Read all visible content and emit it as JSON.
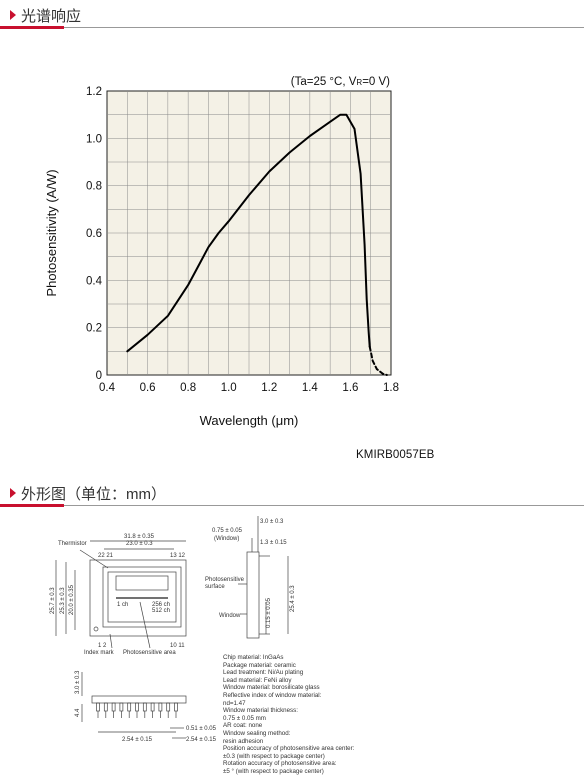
{
  "sections": [
    {
      "title": "光谱响应"
    },
    {
      "title": "外形图（单位：mm）"
    }
  ],
  "chart_data": {
    "type": "line",
    "title": "",
    "condition": {
      "prefix": "(Ta=25 °C, V",
      "sub": "R",
      "suffix": "=0 V)"
    },
    "xlabel": "Wavelength (μm)",
    "ylabel": "Photosensitivity (A/W)",
    "xlim": [
      0.4,
      1.8
    ],
    "ylim": [
      0,
      1.2
    ],
    "xticks": [
      "0.4",
      "0.6",
      "0.8",
      "1.0",
      "1.2",
      "1.4",
      "1.6",
      "1.8"
    ],
    "yticks": [
      "0",
      "0.2",
      "0.4",
      "0.6",
      "0.8",
      "1.0",
      "1.2"
    ],
    "grid": true,
    "series": [
      {
        "style": "solid",
        "points": [
          [
            0.5,
            0.1
          ],
          [
            0.6,
            0.17
          ],
          [
            0.7,
            0.25
          ],
          [
            0.8,
            0.38
          ],
          [
            0.85,
            0.46
          ],
          [
            0.9,
            0.54
          ],
          [
            0.95,
            0.6
          ],
          [
            1.0,
            0.65
          ],
          [
            1.1,
            0.76
          ],
          [
            1.2,
            0.86
          ],
          [
            1.3,
            0.94
          ],
          [
            1.4,
            1.01
          ],
          [
            1.5,
            1.07
          ],
          [
            1.55,
            1.1
          ],
          [
            1.58,
            1.1
          ],
          [
            1.62,
            1.04
          ],
          [
            1.65,
            0.85
          ],
          [
            1.67,
            0.55
          ],
          [
            1.68,
            0.32
          ],
          [
            1.69,
            0.18
          ],
          [
            1.695,
            0.12
          ]
        ]
      },
      {
        "style": "dashed",
        "points": [
          [
            1.695,
            0.12
          ],
          [
            1.71,
            0.06
          ],
          [
            1.73,
            0.025
          ],
          [
            1.76,
            0.005
          ],
          [
            1.78,
            0.0
          ]
        ]
      }
    ],
    "code": "KMIRB0057EB"
  },
  "drawing": {
    "labels": {
      "thermistor": "Thermistor",
      "w318": "31.8 ± 0.35",
      "w230": "23.0 ± 0.3",
      "pin22_21": "22 21",
      "pin13_12": "13 12",
      "h257": "25.7 ± 0.3",
      "h253": "25.3 ± 0.3",
      "h200": "20.0 ± 0.35",
      "ch1": "1 ch",
      "ch256": "256 ch",
      "ch512": "512 ch",
      "pin1_2": "1  2",
      "pin10_11": "10 11",
      "index": "Index mark",
      "psarea": "Photosensitive area",
      "d075": "0.75 ± 0.05",
      "window_p": "(Window)",
      "d30": "3.0 ± 0.3",
      "d13": "1.3 ± 0.15",
      "ps_surface_1": "Photosensitive",
      "ps_surface_2": "surface",
      "window": "Window",
      "d254": "25.4 ± 0.3",
      "d015": "0.15 ± 0.05",
      "b30": "3.0 ± 0.3",
      "b44": "4.4",
      "b254": "2.54 ± 0.15",
      "b051": "0.51 ± 0.05"
    },
    "notes": [
      "Chip material: InGaAs",
      "Package material: ceramic",
      "Lead treatment: Ni/Au plating",
      "Lead material: FeNi alloy",
      "Window material: borosilicate glass",
      "Reflective index of window material:",
      "nd=1.47",
      "Window material thickness:",
      "0.75 ± 0.05 mm",
      "AR coat: none",
      "Window sealing method:",
      "resin adhesion",
      "Position accuracy of photosensitive area center:",
      "±0.3 (with respect to package center)",
      "Rotation accuracy of photosensitive area:",
      "±5 ° (with respect to package center)"
    ]
  }
}
